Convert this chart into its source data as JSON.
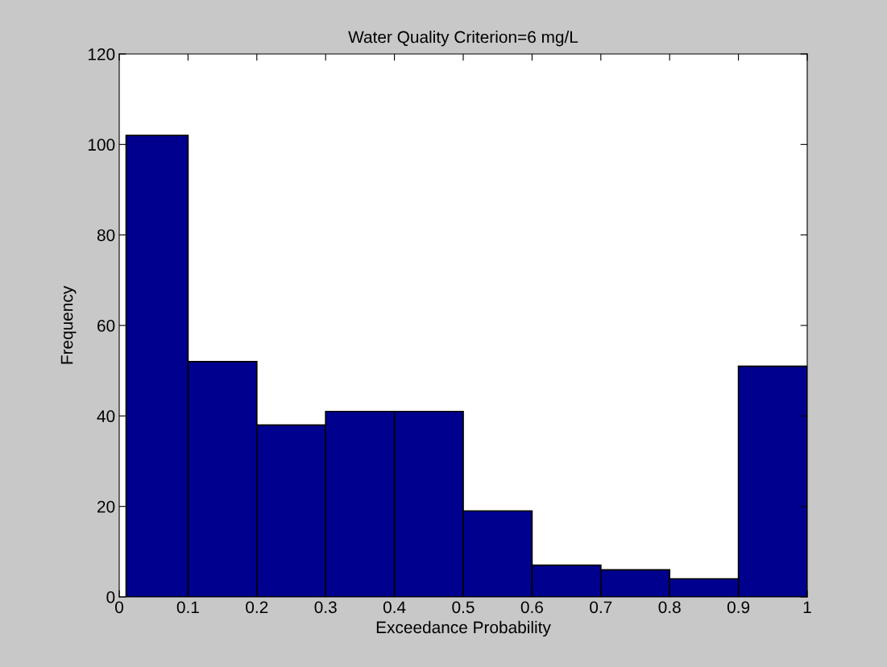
{
  "chart_data": {
    "type": "histogram",
    "title": "Water Quality Criterion=6 mg/L",
    "xlabel": "Exceedance Probability",
    "ylabel": "Frequency",
    "bins": [
      0.01,
      0.1,
      0.2,
      0.3,
      0.4,
      0.5,
      0.6,
      0.7,
      0.8,
      0.9,
      1.0
    ],
    "values": [
      102,
      52,
      38,
      41,
      41,
      19,
      7,
      6,
      4,
      51
    ],
    "color": "#00008f",
    "xlim": [
      0,
      1
    ],
    "xticks": [
      0,
      0.1,
      0.2,
      0.3,
      0.4,
      0.5,
      0.6,
      0.7,
      0.8,
      0.9,
      1
    ],
    "ylim": [
      0,
      120
    ],
    "yticks": [
      0,
      20,
      40,
      60,
      80,
      100,
      120
    ],
    "grid": false
  }
}
